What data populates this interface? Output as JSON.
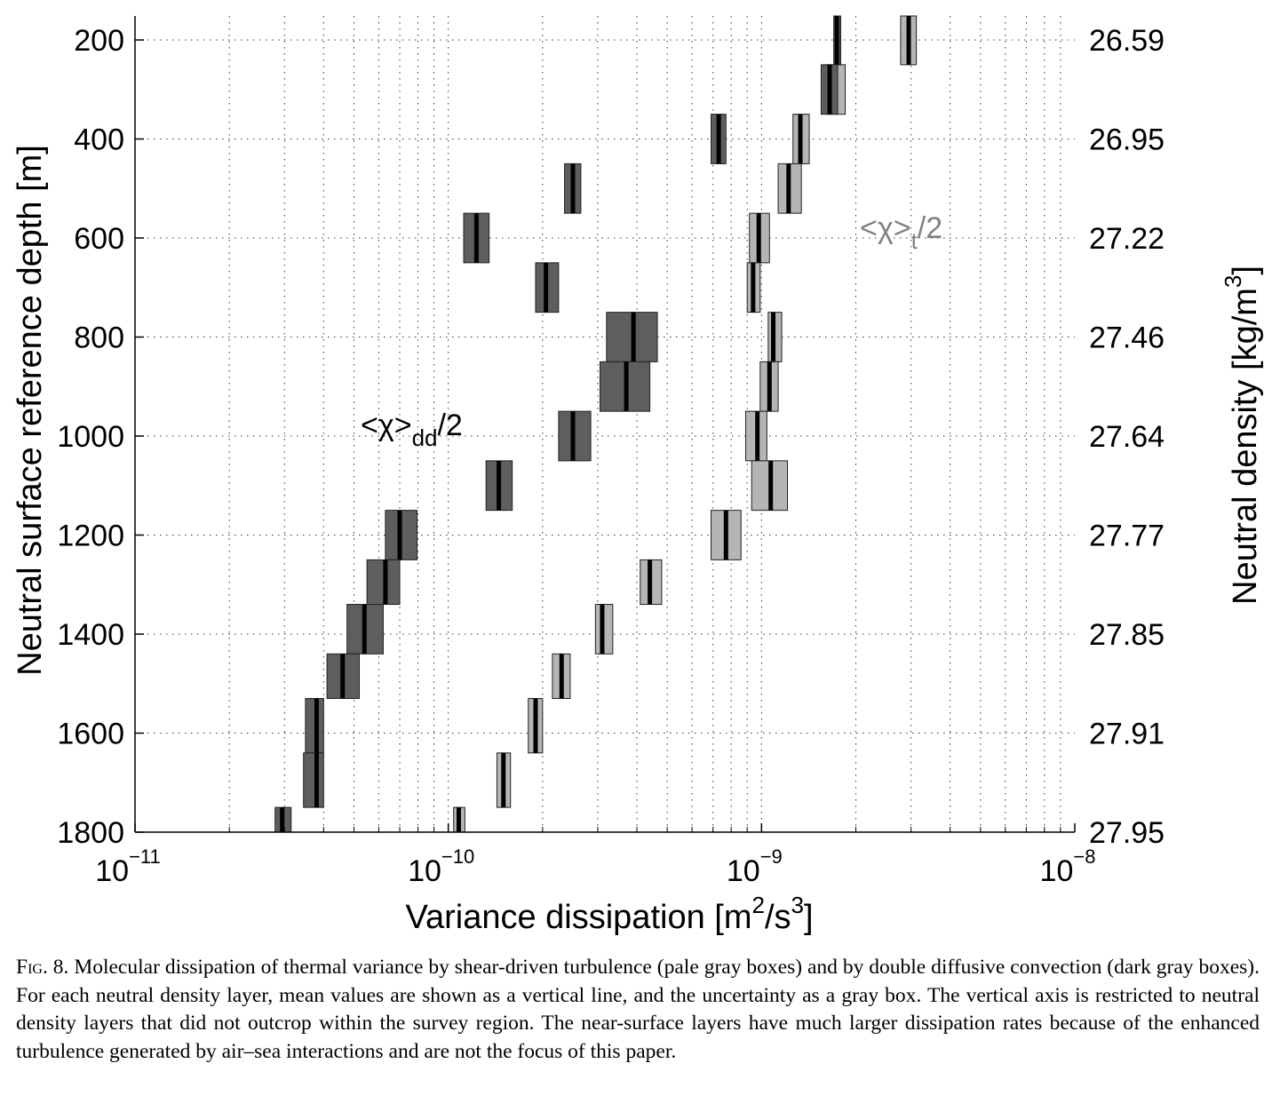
{
  "chart_data": {
    "type": "range-bar",
    "xscale": "log",
    "xlim": [
      1e-11,
      1e-08
    ],
    "ylim": [
      200,
      1800
    ],
    "y_reversed": true,
    "grid": true,
    "xlabel": "Variance dissipation [m²/s³]",
    "xlabel_parts": {
      "pre": "Variance dissipation [m",
      "sup1": "2",
      "mid": "/s",
      "sup2": "3",
      "post": "]"
    },
    "ylabel": "Neutral surface reference depth [m]",
    "ylabel_right": "Neutral density [kg/m³]",
    "ylabel_right_parts": {
      "pre": "Neutral density [kg/m",
      "sup": "3",
      "post": "]"
    },
    "xticks": [
      {
        "value": 1e-11,
        "base": "10",
        "exp": "−11"
      },
      {
        "value": 1e-10,
        "base": "10",
        "exp": "−10"
      },
      {
        "value": 1e-09,
        "base": "10",
        "exp": "−9"
      },
      {
        "value": 1e-08,
        "base": "10",
        "exp": "−8"
      }
    ],
    "yticks": [
      200,
      400,
      600,
      800,
      1000,
      1200,
      1400,
      1600,
      1800
    ],
    "yticks_right": [
      "26.59",
      "26.95",
      "27.22",
      "27.46",
      "27.64",
      "27.77",
      "27.85",
      "27.91",
      "27.95"
    ],
    "layers": [
      {
        "top": 150,
        "bottom": 250
      },
      {
        "top": 250,
        "bottom": 350
      },
      {
        "top": 350,
        "bottom": 450
      },
      {
        "top": 450,
        "bottom": 550
      },
      {
        "top": 550,
        "bottom": 650
      },
      {
        "top": 650,
        "bottom": 750
      },
      {
        "top": 750,
        "bottom": 850
      },
      {
        "top": 850,
        "bottom": 950
      },
      {
        "top": 950,
        "bottom": 1050
      },
      {
        "top": 1050,
        "bottom": 1150
      },
      {
        "top": 1150,
        "bottom": 1250
      },
      {
        "top": 1250,
        "bottom": 1340
      },
      {
        "top": 1340,
        "bottom": 1440
      },
      {
        "top": 1440,
        "bottom": 1530
      },
      {
        "top": 1530,
        "bottom": 1640
      },
      {
        "top": 1640,
        "bottom": 1750
      },
      {
        "top": 1750,
        "bottom": 1800
      }
    ],
    "series": [
      {
        "name": "<χ>_t/2",
        "color": "#b5b5b5",
        "label": {
          "main": "<χ>",
          "sub": "t",
          "tail": "/2"
        },
        "values": [
          {
            "mean": 2.95e-09,
            "lo": 2.78e-09,
            "hi": 3.12e-09
          },
          {
            "mean": 1.72e-09,
            "lo": 1.6e-09,
            "hi": 1.85e-09
          },
          {
            "mean": 1.33e-09,
            "lo": 1.26e-09,
            "hi": 1.42e-09
          },
          {
            "mean": 1.22e-09,
            "lo": 1.13e-09,
            "hi": 1.34e-09
          },
          {
            "mean": 9.8e-10,
            "lo": 9.15e-10,
            "hi": 1.06e-09
          },
          {
            "mean": 9.4e-10,
            "lo": 9e-10,
            "hi": 9.9e-10
          },
          {
            "mean": 1.09e-09,
            "lo": 1.05e-09,
            "hi": 1.16e-09
          },
          {
            "mean": 1.06e-09,
            "lo": 9.9e-10,
            "hi": 1.13e-09
          },
          {
            "mean": 9.7e-10,
            "lo": 8.9e-10,
            "hi": 1.04e-09
          },
          {
            "mean": 1.07e-09,
            "lo": 9.3e-10,
            "hi": 1.21e-09
          },
          {
            "mean": 7.7e-10,
            "lo": 6.9e-10,
            "hi": 8.6e-10
          },
          {
            "mean": 4.4e-10,
            "lo": 4.1e-10,
            "hi": 4.8e-10
          },
          {
            "mean": 3.1e-10,
            "lo": 2.95e-10,
            "hi": 3.35e-10
          },
          {
            "mean": 2.3e-10,
            "lo": 2.15e-10,
            "hi": 2.45e-10
          },
          {
            "mean": 1.9e-10,
            "lo": 1.8e-10,
            "hi": 2e-10
          },
          {
            "mean": 1.5e-10,
            "lo": 1.43e-10,
            "hi": 1.58e-10
          },
          {
            "mean": 1.08e-10,
            "lo": 1.04e-10,
            "hi": 1.13e-10
          }
        ]
      },
      {
        "name": "<χ>_dd/2",
        "color": "#5e5e5e",
        "label": {
          "main": "<χ>",
          "sub": "dd",
          "tail": "/2"
        },
        "values": [
          {
            "mean": 1.74e-09,
            "lo": 1.7e-09,
            "hi": 1.79e-09
          },
          {
            "mean": 1.65e-09,
            "lo": 1.55e-09,
            "hi": 1.75e-09
          },
          {
            "mean": 7.3e-10,
            "lo": 6.9e-10,
            "hi": 7.7e-10
          },
          {
            "mean": 2.5e-10,
            "lo": 2.35e-10,
            "hi": 2.65e-10
          },
          {
            "mean": 1.23e-10,
            "lo": 1.12e-10,
            "hi": 1.35e-10
          },
          {
            "mean": 2.05e-10,
            "lo": 1.9e-10,
            "hi": 2.25e-10
          },
          {
            "mean": 3.9e-10,
            "lo": 3.2e-10,
            "hi": 4.65e-10
          },
          {
            "mean": 3.7e-10,
            "lo": 3.05e-10,
            "hi": 4.4e-10
          },
          {
            "mean": 2.5e-10,
            "lo": 2.25e-10,
            "hi": 2.85e-10
          },
          {
            "mean": 1.45e-10,
            "lo": 1.32e-10,
            "hi": 1.6e-10
          },
          {
            "mean": 7e-11,
            "lo": 6.3e-11,
            "hi": 7.95e-11
          },
          {
            "mean": 6.3e-11,
            "lo": 5.5e-11,
            "hi": 7e-11
          },
          {
            "mean": 5.4e-11,
            "lo": 4.75e-11,
            "hi": 6.2e-11
          },
          {
            "mean": 4.6e-11,
            "lo": 4.1e-11,
            "hi": 5.2e-11
          },
          {
            "mean": 3.8e-11,
            "lo": 3.5e-11,
            "hi": 4e-11
          },
          {
            "mean": 3.8e-11,
            "lo": 3.45e-11,
            "hi": 4e-11
          },
          {
            "mean": 2.95e-11,
            "lo": 2.8e-11,
            "hi": 3.15e-11
          }
        ]
      }
    ]
  },
  "caption": {
    "label": "Fig. 8.",
    "text": "Molecular dissipation of thermal variance by shear-driven turbulence (pale gray boxes) and by double diffusive convection (dark gray boxes). For each neutral density layer, mean values are shown as a vertical line, and the uncertainty as a gray box. The vertical axis is restricted to neutral density layers that did not outcrop within the survey region. The near-surface layers have much larger dissipation rates because of the enhanced turbulence generated by air–sea interactions and are not the focus of this paper."
  }
}
